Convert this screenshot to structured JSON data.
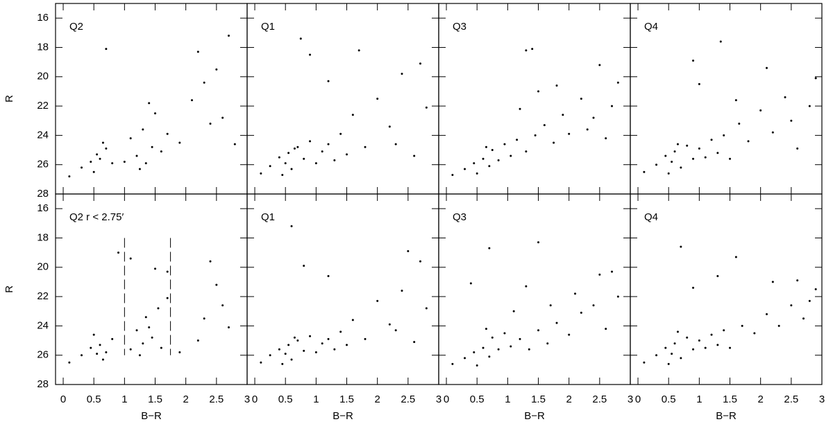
{
  "chart_data": [
    {
      "type": "scatter",
      "label": "Q2",
      "ylabel": "R",
      "show_xtick_labels": false,
      "show_ytick_labels": true,
      "x": [
        0.1,
        0.3,
        0.45,
        0.55,
        0.6,
        0.7,
        0.8,
        0.5,
        0.65,
        1.0,
        1.1,
        1.2,
        1.3,
        1.35,
        1.45,
        1.5,
        1.6,
        1.25,
        1.4,
        1.7,
        1.9,
        2.1,
        2.3,
        2.5,
        2.6,
        2.4,
        2.7,
        0.7,
        2.2,
        2.8
      ],
      "values": [
        26.8,
        26.2,
        25.8,
        25.3,
        25.6,
        24.9,
        25.9,
        26.5,
        24.5,
        25.8,
        24.2,
        25.4,
        23.6,
        25.9,
        24.8,
        22.5,
        25.1,
        26.3,
        21.8,
        23.9,
        24.5,
        21.6,
        20.4,
        19.5,
        22.8,
        23.2,
        17.2,
        18.1,
        18.3,
        24.6
      ],
      "xlim": [
        -0.125,
        3
      ],
      "ylim": [
        28,
        15
      ],
      "xticks": [
        0,
        0.5,
        1,
        1.5,
        2,
        2.5,
        3
      ],
      "yticks": [
        16,
        18,
        20,
        22,
        24,
        26,
        28
      ]
    },
    {
      "type": "scatter",
      "label": "Q1",
      "show_xtick_labels": false,
      "show_ytick_labels": false,
      "x": [
        0.1,
        0.25,
        0.4,
        0.5,
        0.55,
        0.6,
        0.7,
        0.8,
        0.9,
        1.0,
        1.1,
        1.2,
        1.3,
        1.4,
        1.5,
        0.45,
        0.65,
        1.6,
        1.8,
        2.0,
        2.2,
        2.4,
        2.6,
        2.8,
        0.9,
        1.2,
        1.7,
        2.3,
        2.7,
        0.75
      ],
      "values": [
        26.6,
        26.1,
        25.5,
        25.9,
        25.2,
        26.3,
        24.8,
        25.6,
        24.4,
        25.9,
        25.1,
        24.6,
        25.7,
        23.9,
        25.3,
        26.7,
        24.9,
        22.6,
        24.8,
        21.5,
        23.4,
        19.8,
        25.4,
        22.1,
        18.5,
        20.3,
        18.2,
        24.6,
        19.1,
        17.4
      ],
      "xlim": [
        -0.125,
        3
      ],
      "ylim": [
        28,
        15
      ],
      "xticks": [
        0,
        0.5,
        1,
        1.5,
        2,
        2.5,
        3
      ],
      "yticks": [
        16,
        18,
        20,
        22,
        24,
        26,
        28
      ]
    },
    {
      "type": "scatter",
      "label": "Q3",
      "show_xtick_labels": false,
      "show_ytick_labels": false,
      "x": [
        0.1,
        0.3,
        0.45,
        0.6,
        0.7,
        0.75,
        0.85,
        0.95,
        1.05,
        1.15,
        1.3,
        1.45,
        1.6,
        1.75,
        1.9,
        0.5,
        0.65,
        2.0,
        2.2,
        2.4,
        2.6,
        2.8,
        1.2,
        1.5,
        1.8,
        2.3,
        2.5,
        1.3,
        1.4,
        2.7
      ],
      "values": [
        26.7,
        26.3,
        25.9,
        25.6,
        26.1,
        25.0,
        25.7,
        24.6,
        25.4,
        24.3,
        25.1,
        24.0,
        23.3,
        24.5,
        22.6,
        26.6,
        24.8,
        23.9,
        21.5,
        22.8,
        24.2,
        20.4,
        22.2,
        21.0,
        20.6,
        23.6,
        19.2,
        18.2,
        18.1,
        22.0
      ],
      "xlim": [
        -0.125,
        3
      ],
      "ylim": [
        28,
        15
      ],
      "xticks": [
        0,
        0.5,
        1,
        1.5,
        2,
        2.5,
        3
      ],
      "yticks": [
        16,
        18,
        20,
        22,
        24,
        26,
        28
      ]
    },
    {
      "type": "scatter",
      "label": "Q4",
      "show_xtick_labels": false,
      "show_ytick_labels": false,
      "x": [
        0.1,
        0.3,
        0.45,
        0.55,
        0.6,
        0.7,
        0.8,
        0.9,
        1.0,
        1.1,
        1.2,
        1.3,
        1.4,
        1.5,
        1.65,
        0.5,
        0.65,
        1.8,
        2.0,
        2.2,
        2.4,
        2.6,
        2.8,
        1.0,
        1.6,
        2.1,
        2.5,
        2.9,
        0.9,
        1.35
      ],
      "values": [
        26.5,
        26.0,
        25.4,
        25.8,
        25.1,
        26.2,
        24.7,
        25.6,
        24.9,
        25.5,
        24.3,
        25.2,
        24.0,
        25.6,
        23.2,
        26.6,
        24.6,
        24.4,
        22.3,
        23.8,
        21.4,
        24.9,
        22.0,
        20.5,
        21.6,
        19.4,
        23.0,
        20.1,
        18.9,
        17.6
      ],
      "xlim": [
        -0.125,
        3
      ],
      "ylim": [
        28,
        15
      ],
      "xticks": [
        0,
        0.5,
        1,
        1.5,
        2,
        2.5,
        3
      ],
      "yticks": [
        16,
        18,
        20,
        22,
        24,
        26,
        28
      ]
    },
    {
      "type": "scatter",
      "label": "Q2 r < 2.75′",
      "xlabel": "B−R",
      "ylabel": "R",
      "show_xtick_labels": true,
      "show_ytick_labels": true,
      "x": [
        0.1,
        0.3,
        0.45,
        0.55,
        0.6,
        0.7,
        0.8,
        0.65,
        1.1,
        1.2,
        1.3,
        1.35,
        1.45,
        1.55,
        1.6,
        1.25,
        1.4,
        1.7,
        1.5,
        1.9,
        2.3,
        2.4,
        2.5,
        2.6,
        2.7,
        0.9,
        1.1,
        1.7,
        2.2,
        0.5
      ],
      "values": [
        26.5,
        26.0,
        25.5,
        25.9,
        25.3,
        25.8,
        24.9,
        26.3,
        25.6,
        24.3,
        25.2,
        23.4,
        24.8,
        22.8,
        25.5,
        26.0,
        24.1,
        22.1,
        20.1,
        25.8,
        23.5,
        19.6,
        21.2,
        22.6,
        24.1,
        19.0,
        19.4,
        20.3,
        25.0,
        24.6
      ],
      "vlines": [
        1,
        1.75
      ],
      "vline_range": [
        18,
        26
      ],
      "xlim": [
        -0.125,
        3
      ],
      "ylim": [
        28,
        15
      ],
      "xticks": [
        0,
        0.5,
        1,
        1.5,
        2,
        2.5,
        3
      ],
      "yticks": [
        16,
        18,
        20,
        22,
        24,
        26,
        28
      ]
    },
    {
      "type": "scatter",
      "label": "Q1",
      "xlabel": "B−R",
      "show_xtick_labels": true,
      "show_ytick_labels": false,
      "x": [
        0.1,
        0.25,
        0.4,
        0.5,
        0.55,
        0.6,
        0.7,
        0.8,
        0.9,
        1.0,
        1.1,
        1.2,
        1.3,
        1.4,
        1.5,
        0.45,
        0.65,
        1.6,
        1.8,
        2.0,
        2.2,
        2.4,
        2.6,
        2.8,
        0.8,
        1.2,
        2.5,
        2.7,
        0.6,
        2.3
      ],
      "values": [
        26.5,
        26.0,
        25.6,
        25.9,
        25.3,
        26.3,
        25.0,
        25.7,
        24.7,
        25.8,
        25.2,
        24.9,
        25.6,
        24.4,
        25.3,
        26.6,
        24.8,
        23.6,
        24.9,
        22.3,
        23.9,
        21.6,
        25.1,
        22.8,
        19.9,
        20.6,
        18.9,
        19.6,
        17.2,
        24.3
      ],
      "xlim": [
        -0.125,
        3
      ],
      "ylim": [
        28,
        15
      ],
      "xticks": [
        0,
        0.5,
        1,
        1.5,
        2,
        2.5,
        3
      ],
      "yticks": [
        16,
        18,
        20,
        22,
        24,
        26,
        28
      ]
    },
    {
      "type": "scatter",
      "label": "Q3",
      "xlabel": "B−R",
      "show_xtick_labels": true,
      "show_ytick_labels": false,
      "x": [
        0.1,
        0.3,
        0.45,
        0.6,
        0.7,
        0.75,
        0.85,
        0.95,
        1.05,
        1.2,
        1.35,
        1.5,
        1.65,
        1.8,
        2.0,
        0.5,
        0.65,
        2.2,
        2.4,
        2.6,
        2.8,
        1.3,
        1.7,
        2.1,
        2.5,
        0.4,
        0.7,
        1.5,
        2.7,
        1.1
      ],
      "values": [
        26.6,
        26.2,
        25.8,
        25.5,
        26.1,
        24.8,
        25.6,
        24.5,
        25.4,
        24.9,
        25.6,
        24.3,
        25.2,
        23.8,
        24.6,
        26.7,
        24.2,
        23.1,
        22.6,
        24.2,
        22.0,
        21.3,
        22.6,
        21.8,
        20.5,
        21.1,
        18.7,
        18.3,
        20.3,
        23.0
      ],
      "xlim": [
        -0.125,
        3
      ],
      "ylim": [
        28,
        15
      ],
      "xticks": [
        0,
        0.5,
        1,
        1.5,
        2,
        2.5,
        3
      ],
      "yticks": [
        16,
        18,
        20,
        22,
        24,
        26,
        28
      ]
    },
    {
      "type": "scatter",
      "label": "Q4",
      "xlabel": "B−R",
      "show_xtick_labels": true,
      "show_ytick_labels": false,
      "x": [
        0.1,
        0.3,
        0.45,
        0.55,
        0.6,
        0.7,
        0.8,
        0.9,
        1.0,
        1.1,
        1.2,
        1.3,
        1.4,
        1.5,
        1.7,
        0.5,
        0.65,
        1.9,
        2.1,
        2.3,
        2.5,
        2.7,
        2.9,
        0.9,
        1.3,
        2.2,
        2.6,
        2.8,
        0.7,
        1.6
      ],
      "values": [
        26.5,
        26.0,
        25.5,
        25.9,
        25.2,
        26.2,
        24.8,
        25.6,
        25.0,
        25.5,
        24.6,
        25.3,
        24.3,
        25.5,
        24.0,
        26.6,
        24.4,
        24.5,
        23.2,
        24.0,
        22.6,
        23.5,
        21.5,
        21.4,
        20.6,
        21.0,
        20.9,
        22.3,
        18.6,
        19.3
      ],
      "xlim": [
        -0.125,
        3
      ],
      "ylim": [
        28,
        15
      ],
      "xticks": [
        0,
        0.5,
        1,
        1.5,
        2,
        2.5,
        3
      ],
      "yticks": [
        16,
        18,
        20,
        22,
        24,
        26,
        28
      ]
    }
  ]
}
